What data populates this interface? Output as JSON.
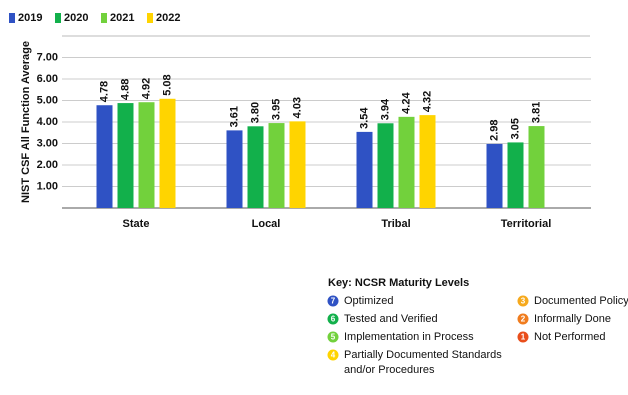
{
  "chart_data": {
    "type": "bar",
    "y_label": "NIST CSF All Function Average",
    "categories": [
      "State",
      "Local",
      "Tribal",
      "Territorial"
    ],
    "series": [
      {
        "name": "2019",
        "color": "#2f52c4",
        "values": [
          4.78,
          3.61,
          3.54,
          2.98
        ],
        "value_labels": [
          "4.78",
          "3.61",
          "3.54",
          "2.98"
        ]
      },
      {
        "name": "2020",
        "color": "#12b04b",
        "values": [
          4.88,
          3.8,
          3.94,
          3.05
        ],
        "value_labels": [
          "4.88",
          "3.80",
          "3.94",
          "3.05"
        ]
      },
      {
        "name": "2021",
        "color": "#72d13c",
        "values": [
          4.92,
          3.95,
          4.24,
          3.81
        ],
        "value_labels": [
          "4.92",
          "3.95",
          "4.24",
          "3.81"
        ]
      },
      {
        "name": "2022",
        "color": "#ffd400",
        "values": [
          5.08,
          4.03,
          4.32,
          null
        ],
        "value_labels": [
          "5.08",
          "4.03",
          "4.32",
          null
        ]
      }
    ],
    "ylim": [
      0,
      8
    ],
    "yticks": [
      {
        "value": 1,
        "label": "1.00"
      },
      {
        "value": 2,
        "label": "2.00"
      },
      {
        "value": 3,
        "label": "3.00"
      },
      {
        "value": 4,
        "label": "4.00"
      },
      {
        "value": 5,
        "label": "5.00"
      },
      {
        "value": 6,
        "label": "6.00"
      },
      {
        "value": 7,
        "label": "7.00"
      }
    ],
    "grid": true
  },
  "key": {
    "title": "Key: NCSR Maturity Levels",
    "items": [
      {
        "number": "7",
        "lines": [
          "Optimized"
        ],
        "color": "#2f52c4"
      },
      {
        "number": "6",
        "lines": [
          "Tested and Verified"
        ],
        "color": "#12b04b"
      },
      {
        "number": "5",
        "lines": [
          "Implementation in Process"
        ],
        "color": "#72d13c"
      },
      {
        "number": "4",
        "lines": [
          "Partially Documented Standards",
          "and/or Procedures"
        ],
        "color": "#ffd400"
      },
      {
        "number": "3",
        "lines": [
          "Documented Policy"
        ],
        "color": "#f6a91c"
      },
      {
        "number": "2",
        "lines": [
          "Informally Done"
        ],
        "color": "#f07c1e"
      },
      {
        "number": "1",
        "lines": [
          "Not Performed"
        ],
        "color": "#e94e1b"
      }
    ]
  }
}
